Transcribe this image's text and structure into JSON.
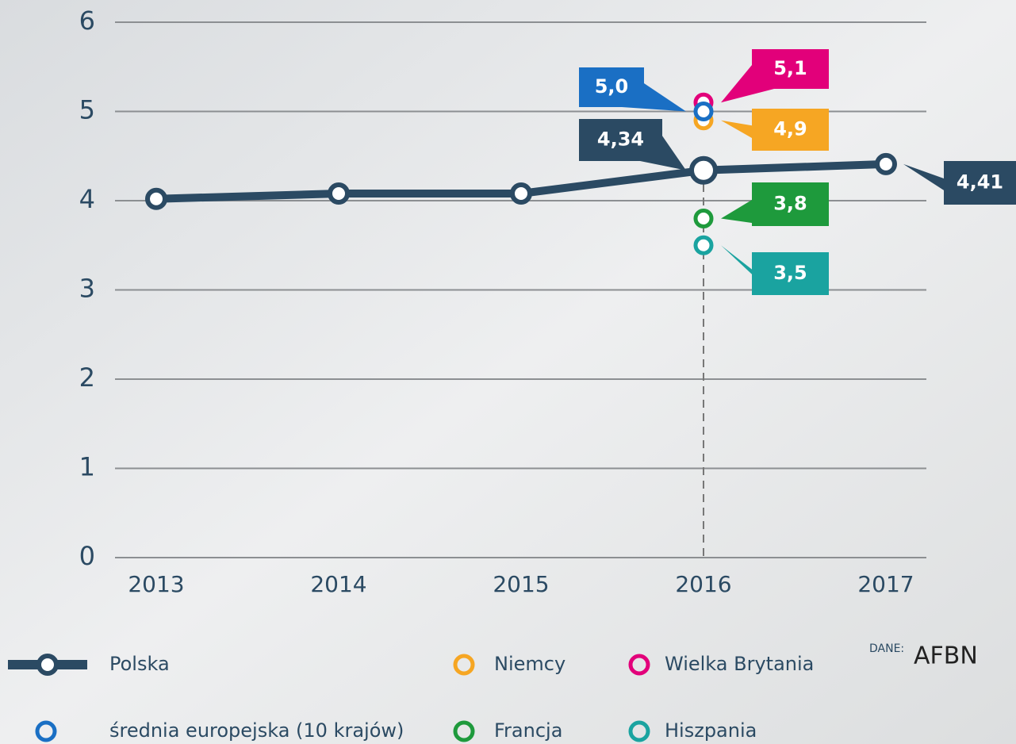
{
  "chart_data": {
    "type": "line",
    "categories": [
      "2013",
      "2014",
      "2015",
      "2016",
      "2017"
    ],
    "ylim": [
      0,
      6
    ],
    "yticks": [
      0,
      1,
      2,
      3,
      4,
      5,
      6
    ],
    "grid": true,
    "series": [
      {
        "name": "Polska",
        "color": "#2b4a63",
        "values": [
          4.02,
          4.08,
          4.08,
          4.34,
          4.41
        ],
        "value_labels": [
          null,
          null,
          null,
          "4,34",
          "4,41"
        ]
      },
      {
        "name": "Niemcy",
        "color": "#f6a623",
        "values": [
          null,
          null,
          null,
          4.9,
          null
        ],
        "value_labels": [
          null,
          null,
          null,
          "4,9",
          null
        ]
      },
      {
        "name": "Wielka Brytania",
        "color": "#e2007a",
        "values": [
          null,
          null,
          null,
          5.1,
          null
        ],
        "value_labels": [
          null,
          null,
          null,
          "5,1",
          null
        ]
      },
      {
        "name": "średnia europejska (10 krajów)",
        "color": "#1a6fc4",
        "values": [
          null,
          null,
          null,
          5.0,
          null
        ],
        "value_labels": [
          null,
          null,
          null,
          "5,0",
          null
        ]
      },
      {
        "name": "Francja",
        "color": "#1e9a3c",
        "values": [
          null,
          null,
          null,
          3.8,
          null
        ],
        "value_labels": [
          null,
          null,
          null,
          "3,8",
          null
        ]
      },
      {
        "name": "Hiszpania",
        "color": "#1aa3a0",
        "values": [
          null,
          null,
          null,
          3.5,
          null
        ],
        "value_labels": [
          null,
          null,
          null,
          "3,5",
          null
        ]
      }
    ],
    "source_prefix": "DANE:",
    "source": "AFBN"
  }
}
